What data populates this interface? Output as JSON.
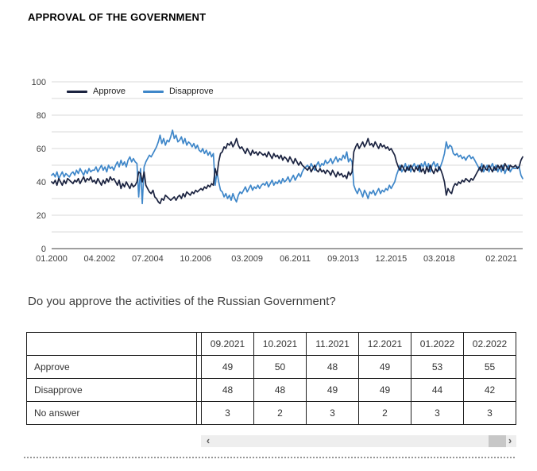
{
  "page": {
    "title": "APPROVAL OF THE GOVERNMENT",
    "question": "Do you approve the activities of the Russian Government?"
  },
  "chart_data": {
    "type": "line",
    "title": "APPROVAL OF THE GOVERNMENT",
    "xlabel": "",
    "ylabel": "",
    "ylim": [
      0,
      100
    ],
    "y_ticks": [
      0,
      20,
      40,
      60,
      80,
      100
    ],
    "grid_step": 10,
    "grid": "horizontal gridlines every 10, light gray",
    "legend_position": "top-left inside plot",
    "x_unit": "month",
    "x_start": "01.2000",
    "x_end": "02.2022",
    "x_ticks": [
      {
        "label": "01.2000",
        "month_index": 0
      },
      {
        "label": "04.2002",
        "month_index": 27
      },
      {
        "label": "07.2004",
        "month_index": 54
      },
      {
        "label": "10.2006",
        "month_index": 81
      },
      {
        "label": "03.2009",
        "month_index": 110
      },
      {
        "label": "06.2011",
        "month_index": 137
      },
      {
        "label": "09.2013",
        "month_index": 164
      },
      {
        "label": "12.2015",
        "month_index": 191
      },
      {
        "label": "03.2018",
        "month_index": 218
      },
      {
        "label": "02.2021",
        "month_index": 253
      }
    ],
    "series": [
      {
        "name": "Disapprove",
        "color": "#3f87c9",
        "values": [
          44,
          45,
          43,
          46,
          42,
          44,
          46,
          43,
          45,
          44,
          43,
          45,
          46,
          44,
          47,
          45,
          48,
          46,
          44,
          47,
          45,
          48,
          46,
          47,
          47,
          49,
          46,
          48,
          50,
          47,
          49,
          46,
          50,
          48,
          49,
          47,
          50,
          52,
          49,
          53,
          50,
          52,
          49,
          53,
          55,
          52,
          54,
          52,
          51,
          31,
          48,
          27,
          49,
          52,
          54,
          56,
          55,
          57,
          59,
          61,
          64,
          68,
          63,
          66,
          62,
          65,
          64,
          67,
          71,
          66,
          68,
          64,
          65,
          67,
          63,
          66,
          62,
          64,
          63,
          61,
          63,
          60,
          62,
          59,
          58,
          60,
          57,
          59,
          56,
          58,
          55,
          57,
          38,
          46,
          40,
          35,
          34,
          31,
          33,
          30,
          32,
          29,
          33,
          30,
          28,
          32,
          34,
          33,
          35,
          37,
          34,
          36,
          38,
          35,
          37,
          36,
          38,
          36,
          38,
          39,
          38,
          40,
          37,
          39,
          41,
          38,
          40,
          39,
          41,
          39,
          42,
          40,
          41,
          43,
          40,
          42,
          44,
          41,
          43,
          45,
          43,
          46,
          48,
          49,
          50,
          48,
          51,
          49,
          47,
          50,
          52,
          49,
          51,
          50,
          53,
          51,
          52,
          54,
          51,
          53,
          55,
          52,
          54,
          53,
          56,
          54,
          58,
          52,
          54,
          52,
          38,
          35,
          33,
          36,
          34,
          31,
          35,
          33,
          30,
          34,
          33,
          35,
          32,
          34,
          36,
          33,
          35,
          34,
          36,
          35,
          38,
          36,
          38,
          40,
          44,
          47,
          50,
          46,
          48,
          51,
          47,
          50,
          46,
          49,
          51,
          48,
          50,
          46,
          51,
          49,
          52,
          48,
          51,
          46,
          50,
          52,
          49,
          51,
          47,
          50,
          53,
          57,
          64,
          60,
          62,
          61,
          57,
          56,
          57,
          55,
          56,
          54,
          55,
          53,
          55,
          56,
          54,
          55,
          53,
          51,
          49,
          47,
          51,
          46,
          48,
          50,
          46,
          49,
          51,
          47,
          50,
          46,
          49,
          46,
          50,
          45,
          48,
          50,
          46,
          48,
          48,
          48,
          49,
          49,
          44,
          42
        ]
      },
      {
        "name": "Approve",
        "color": "#1b2340",
        "values": [
          40,
          39,
          41,
          38,
          42,
          40,
          38,
          41,
          39,
          42,
          41,
          40,
          39,
          41,
          40,
          42,
          39,
          41,
          43,
          40,
          42,
          41,
          43,
          40,
          41,
          39,
          42,
          40,
          38,
          41,
          39,
          42,
          40,
          43,
          41,
          42,
          40,
          38,
          41,
          36,
          39,
          37,
          40,
          38,
          36,
          39,
          37,
          38,
          40,
          46,
          45,
          40,
          46,
          38,
          36,
          34,
          33,
          35,
          31,
          30,
          28,
          27,
          30,
          29,
          32,
          31,
          30,
          29,
          30,
          31,
          29,
          31,
          32,
          30,
          33,
          31,
          34,
          33,
          32,
          34,
          33,
          35,
          34,
          35,
          36,
          35,
          37,
          36,
          38,
          37,
          39,
          38,
          48,
          44,
          52,
          57,
          58,
          61,
          60,
          63,
          62,
          64,
          61,
          63,
          66,
          62,
          60,
          61,
          59,
          57,
          60,
          58,
          56,
          59,
          57,
          58,
          56,
          58,
          57,
          56,
          57,
          55,
          58,
          56,
          54,
          57,
          55,
          56,
          54,
          56,
          53,
          55,
          54,
          52,
          55,
          53,
          51,
          54,
          52,
          50,
          52,
          50,
          49,
          48,
          47,
          49,
          46,
          48,
          50,
          47,
          46,
          48,
          46,
          47,
          45,
          47,
          46,
          44,
          47,
          45,
          43,
          46,
          44,
          45,
          43,
          44,
          42,
          46,
          44,
          46,
          58,
          61,
          63,
          60,
          62,
          64,
          61,
          63,
          66,
          62,
          63,
          61,
          64,
          62,
          60,
          63,
          61,
          62,
          60,
          61,
          59,
          60,
          58,
          56,
          52,
          49,
          47,
          50,
          48,
          46,
          49,
          47,
          50,
          48,
          46,
          49,
          47,
          50,
          46,
          48,
          45,
          49,
          46,
          50,
          47,
          45,
          48,
          46,
          49,
          47,
          44,
          40,
          32,
          36,
          34,
          33,
          37,
          39,
          38,
          40,
          39,
          41,
          40,
          42,
          41,
          40,
          42,
          41,
          43,
          45,
          47,
          49,
          46,
          50,
          48,
          47,
          50,
          48,
          46,
          49,
          47,
          50,
          48,
          50,
          47,
          51,
          49,
          47,
          50,
          49,
          49,
          50,
          48,
          49,
          53,
          55
        ]
      }
    ],
    "legend_order": [
      "Approve",
      "Disapprove"
    ]
  },
  "table": {
    "columns": [
      "09.2021",
      "10.2021",
      "11.2021",
      "12.2021",
      "01.2022",
      "02.2022"
    ],
    "rows": [
      {
        "label": "Approve",
        "values": [
          49,
          50,
          48,
          49,
          53,
          55
        ]
      },
      {
        "label": "Disapprove",
        "values": [
          48,
          48,
          49,
          49,
          44,
          42
        ]
      },
      {
        "label": "No answer",
        "values": [
          3,
          2,
          3,
          2,
          3,
          3
        ]
      }
    ]
  },
  "scrollbar": {
    "left_arrow": "‹",
    "right_arrow": "›"
  },
  "colors": {
    "approve_line": "#1b2340",
    "disapprove_line": "#3f87c9",
    "gridline": "#d9d9d9",
    "axis_line": "#3f3f3f",
    "axis_label": "#404040",
    "table_border": "#1f1f1f",
    "scroll_track": "#eeeeee",
    "scroll_thumb": "#c7c7c7"
  }
}
